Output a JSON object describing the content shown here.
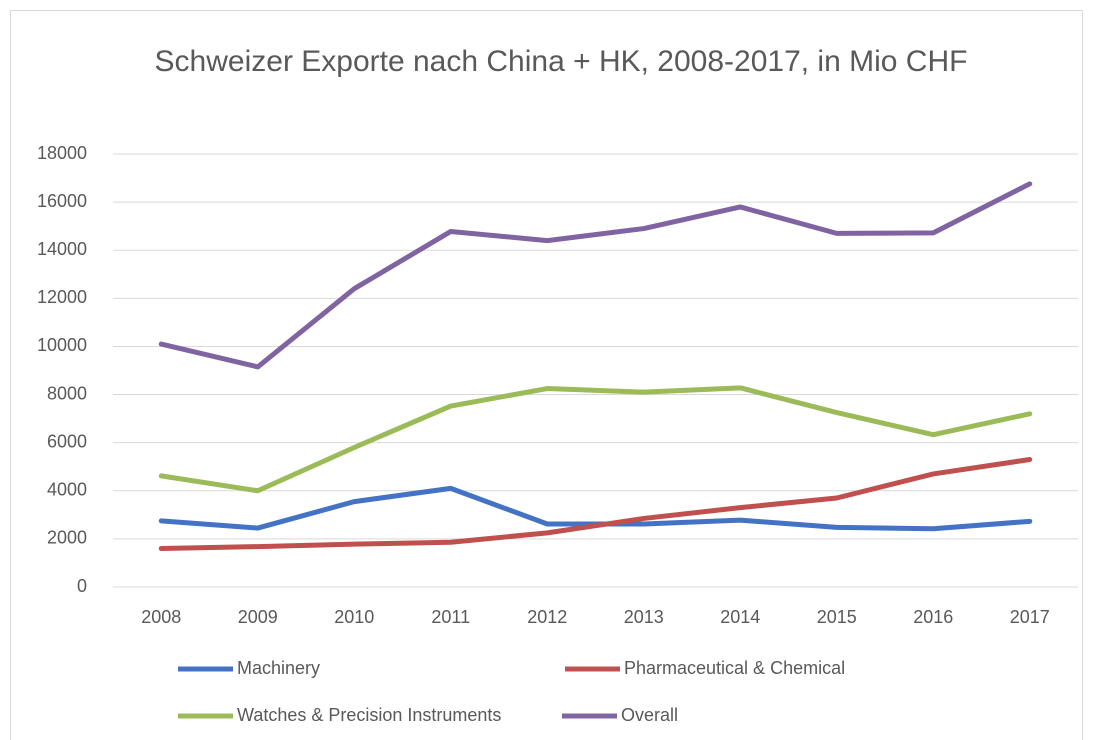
{
  "chart_data": {
    "type": "line",
    "title": "Schweizer Exporte nach China + HK, 2008-2017, in Mio CHF",
    "categories": [
      "2008",
      "2009",
      "2010",
      "2011",
      "2012",
      "2013",
      "2014",
      "2015",
      "2016",
      "2017"
    ],
    "series": [
      {
        "name": "Machinery",
        "color": "#4472c4",
        "values": [
          2750,
          2450,
          3550,
          4100,
          2620,
          2620,
          2780,
          2480,
          2420,
          2730
        ]
      },
      {
        "name": "Pharmaceutical & Chemical",
        "color": "#c0504d",
        "values": [
          1600,
          1680,
          1780,
          1860,
          2250,
          2850,
          3300,
          3700,
          4700,
          5300
        ]
      },
      {
        "name": "Watches & Precision Instruments",
        "color": "#9bbb59",
        "values": [
          4620,
          4000,
          5800,
          7520,
          8250,
          8100,
          8280,
          7250,
          6330,
          7200
        ]
      },
      {
        "name": "Overall",
        "color": "#8064a2",
        "values": [
          10100,
          9150,
          12400,
          14780,
          14400,
          14900,
          15800,
          14700,
          14720,
          16760
        ]
      }
    ],
    "ylim": [
      0,
      18000
    ],
    "yticks": [
      0,
      2000,
      4000,
      6000,
      8000,
      10000,
      12000,
      14000,
      16000,
      18000
    ],
    "grid": true,
    "legend": "bottom"
  }
}
